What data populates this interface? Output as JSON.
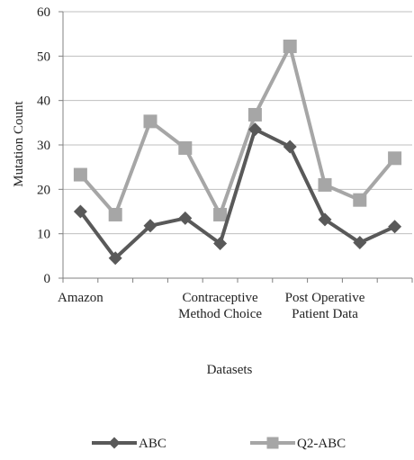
{
  "chart_data": {
    "type": "line",
    "ylabel": "Mutation Count",
    "xlabel": "Datasets",
    "ylim": [
      0,
      60
    ],
    "yticks": [
      0,
      10,
      20,
      30,
      40,
      50,
      60
    ],
    "grid": "horizontal",
    "legend_position": "bottom",
    "categories": [
      "Amazon",
      "",
      "",
      "",
      "Contraceptive Method Choice",
      "",
      "",
      "Post Operative Patient Data",
      "",
      ""
    ],
    "category_tick_labels": [
      {
        "index": 0,
        "lines": [
          "Amazon"
        ]
      },
      {
        "index": 4,
        "lines": [
          "Contraceptive",
          "Method Choice"
        ]
      },
      {
        "index": 7,
        "lines": [
          "Post Operative",
          "Patient Data"
        ]
      }
    ],
    "series": [
      {
        "name": "ABC",
        "color": "#595959",
        "marker": "diamond",
        "values": [
          15,
          4.5,
          11.8,
          13.5,
          7.8,
          33.5,
          29.6,
          13.2,
          8,
          11.6
        ]
      },
      {
        "name": "Q2-ABC",
        "color": "#a6a6a6",
        "marker": "square",
        "values": [
          23.3,
          14.3,
          35.3,
          29.3,
          14.3,
          36.8,
          52.2,
          21,
          17.6,
          27
        ]
      }
    ]
  }
}
